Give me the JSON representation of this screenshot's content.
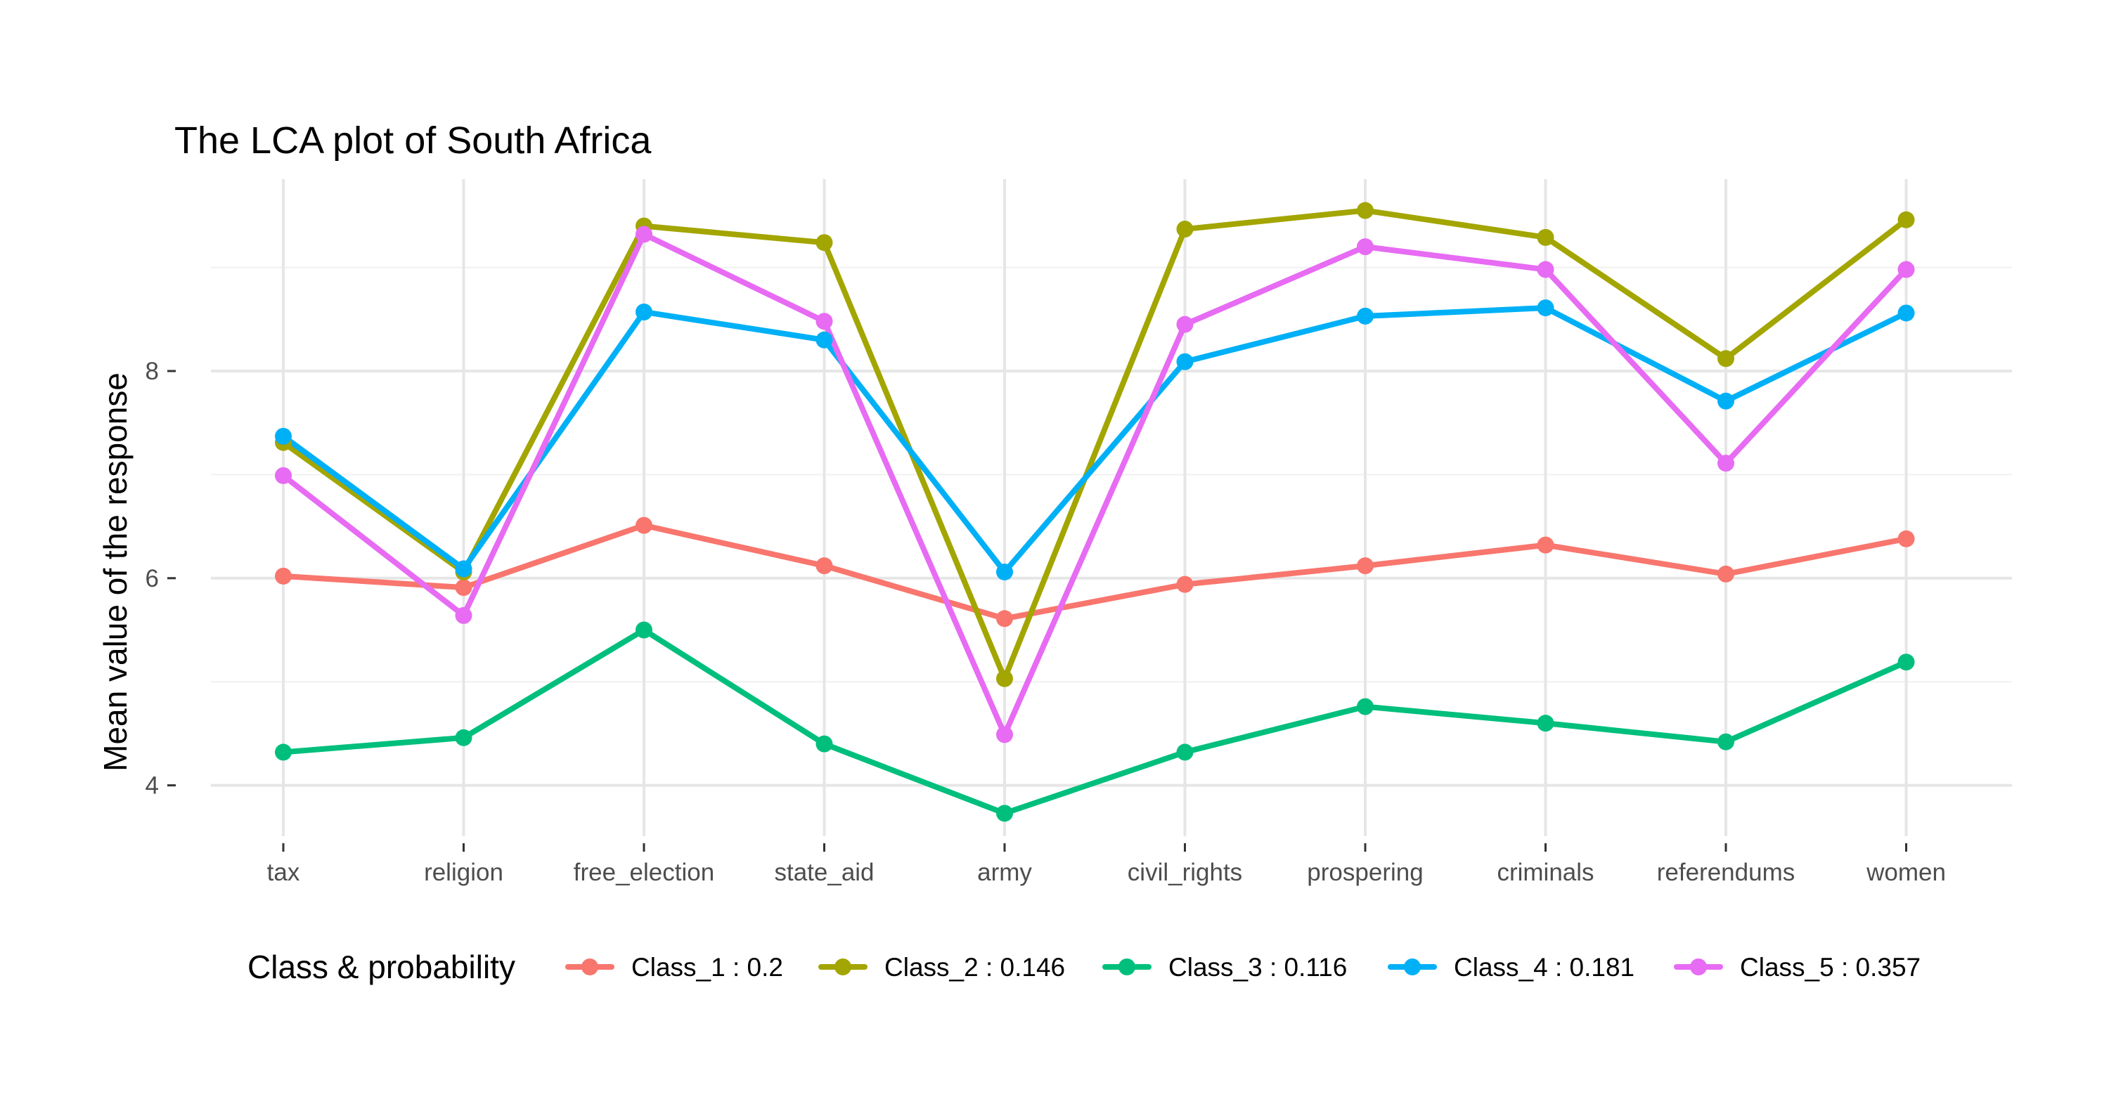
{
  "chart_data": {
    "type": "line",
    "title": "The LCA plot of South Africa",
    "xlabel": "",
    "ylabel": "Mean value of the response",
    "categories": [
      "tax",
      "religion",
      "free_election",
      "state_aid",
      "army",
      "civil_rights",
      "prospering",
      "criminals",
      "referendums",
      "women"
    ],
    "ylim": [
      3.5,
      9.8
    ],
    "yticks": [
      4,
      6,
      8
    ],
    "grid": true,
    "legend_title": "Class & probability",
    "legend_position": "bottom",
    "series": [
      {
        "name": "Class_1 : 0.2",
        "color": "#F8766D",
        "values": [
          6.02,
          5.91,
          6.51,
          6.12,
          5.61,
          5.94,
          6.12,
          6.32,
          6.04,
          6.38
        ]
      },
      {
        "name": "Class_2 : 0.146",
        "color": "#A3A500",
        "values": [
          7.31,
          6.06,
          9.4,
          9.24,
          5.03,
          9.37,
          9.55,
          9.29,
          8.12,
          9.46
        ]
      },
      {
        "name": "Class_3 : 0.116",
        "color": "#00BF7D",
        "values": [
          4.32,
          4.46,
          5.5,
          4.4,
          3.73,
          4.32,
          4.76,
          4.6,
          4.42,
          5.19
        ]
      },
      {
        "name": "Class_4 : 0.181",
        "color": "#00B0F6",
        "values": [
          7.37,
          6.09,
          8.57,
          8.3,
          6.06,
          8.09,
          8.53,
          8.61,
          7.71,
          8.56
        ]
      },
      {
        "name": "Class_5 : 0.357",
        "color": "#E76BF3",
        "values": [
          6.99,
          5.64,
          9.32,
          8.48,
          4.49,
          8.45,
          9.2,
          8.98,
          7.11,
          8.98
        ]
      }
    ]
  }
}
